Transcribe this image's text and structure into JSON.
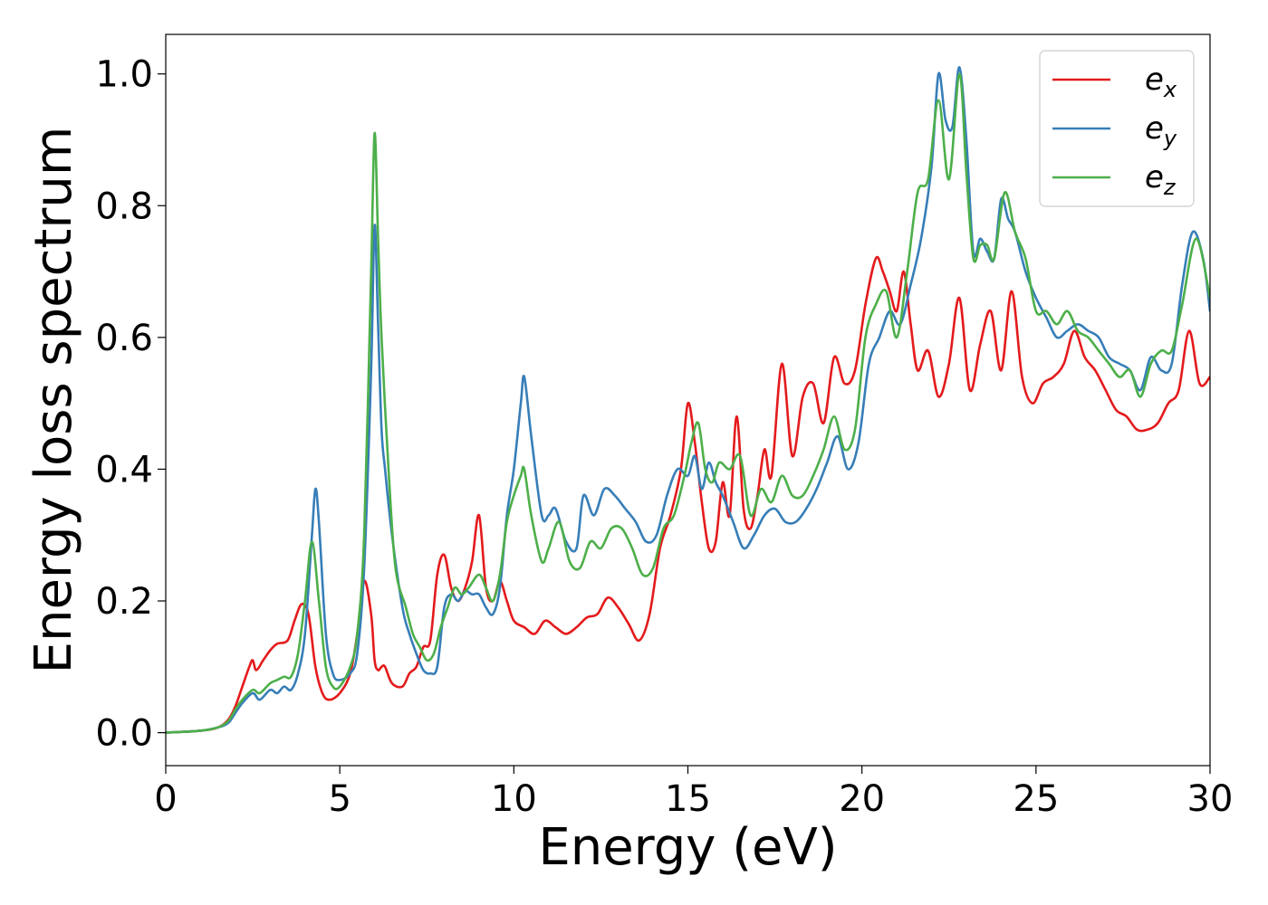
{
  "chart_data": {
    "type": "line",
    "title": "",
    "xlabel": "Energy (eV)",
    "ylabel": "Energy loss spectrum",
    "xlim": [
      0,
      30
    ],
    "ylim": [
      -0.05,
      1.06
    ],
    "xticks": [
      0,
      5,
      10,
      15,
      20,
      25,
      30
    ],
    "xtick_labels": [
      "0",
      "5",
      "10",
      "15",
      "20",
      "25",
      "30"
    ],
    "yticks": [
      0.0,
      0.2,
      0.4,
      0.6,
      0.8,
      1.0
    ],
    "ytick_labels": [
      "0.0",
      "0.2",
      "0.4",
      "0.6",
      "0.8",
      "1.0"
    ],
    "grid": false,
    "legend_position": "top-right",
    "series": [
      {
        "name": "e_x",
        "label_base": "e",
        "label_sub": "x",
        "color": "#e41a1c",
        "x": [
          0,
          1,
          1.5,
          1.8,
          2.0,
          2.2,
          2.4,
          2.5,
          2.6,
          2.8,
          3.0,
          3.2,
          3.5,
          3.7,
          3.9,
          4.1,
          4.3,
          4.5,
          4.7,
          5.0,
          5.3,
          5.5,
          5.7,
          5.9,
          6.0,
          6.1,
          6.2,
          6.3,
          6.5,
          6.8,
          7.0,
          7.2,
          7.4,
          7.6,
          7.8,
          8.0,
          8.2,
          8.4,
          8.6,
          8.8,
          9.0,
          9.2,
          9.4,
          9.6,
          9.8,
          10.0,
          10.3,
          10.6,
          10.9,
          11.2,
          11.5,
          11.8,
          12.1,
          12.4,
          12.7,
          13.0,
          13.3,
          13.6,
          13.9,
          14.2,
          14.5,
          14.8,
          15.0,
          15.2,
          15.4,
          15.6,
          15.8,
          16.0,
          16.2,
          16.4,
          16.6,
          16.8,
          17.0,
          17.2,
          17.4,
          17.7,
          18.0,
          18.3,
          18.6,
          18.9,
          19.2,
          19.5,
          19.8,
          20.1,
          20.4,
          20.6,
          20.8,
          21.0,
          21.2,
          21.4,
          21.6,
          21.9,
          22.2,
          22.5,
          22.8,
          23.1,
          23.4,
          23.7,
          24.0,
          24.3,
          24.6,
          24.9,
          25.2,
          25.5,
          25.8,
          26.1,
          26.4,
          26.7,
          27.0,
          27.3,
          27.6,
          27.9,
          28.2,
          28.5,
          28.8,
          29.1,
          29.4,
          29.7,
          30.0
        ],
        "y": [
          0,
          0.003,
          0.008,
          0.02,
          0.04,
          0.07,
          0.1,
          0.11,
          0.095,
          0.11,
          0.125,
          0.135,
          0.14,
          0.17,
          0.195,
          0.18,
          0.1,
          0.06,
          0.05,
          0.06,
          0.09,
          0.15,
          0.23,
          0.18,
          0.11,
          0.095,
          0.1,
          0.1,
          0.075,
          0.07,
          0.09,
          0.1,
          0.13,
          0.14,
          0.24,
          0.27,
          0.22,
          0.2,
          0.22,
          0.26,
          0.33,
          0.22,
          0.2,
          0.23,
          0.2,
          0.17,
          0.16,
          0.15,
          0.17,
          0.16,
          0.15,
          0.16,
          0.175,
          0.18,
          0.205,
          0.19,
          0.165,
          0.14,
          0.18,
          0.28,
          0.33,
          0.4,
          0.5,
          0.44,
          0.35,
          0.28,
          0.29,
          0.38,
          0.33,
          0.48,
          0.34,
          0.31,
          0.36,
          0.43,
          0.39,
          0.56,
          0.42,
          0.51,
          0.53,
          0.47,
          0.57,
          0.53,
          0.55,
          0.65,
          0.72,
          0.7,
          0.67,
          0.64,
          0.7,
          0.62,
          0.55,
          0.58,
          0.51,
          0.56,
          0.66,
          0.52,
          0.59,
          0.64,
          0.55,
          0.67,
          0.54,
          0.5,
          0.53,
          0.54,
          0.56,
          0.61,
          0.57,
          0.55,
          0.52,
          0.49,
          0.48,
          0.46,
          0.46,
          0.47,
          0.5,
          0.52,
          0.61,
          0.53,
          0.54
        ]
      },
      {
        "name": "e_y",
        "label_base": "e",
        "label_sub": "y",
        "color": "#377eb8",
        "x": [
          0,
          1,
          1.5,
          1.8,
          2.0,
          2.2,
          2.5,
          2.7,
          3.0,
          3.2,
          3.4,
          3.6,
          3.8,
          4.0,
          4.2,
          4.3,
          4.4,
          4.6,
          4.8,
          5.0,
          5.3,
          5.5,
          5.7,
          5.9,
          6.0,
          6.1,
          6.2,
          6.3,
          6.5,
          6.8,
          7.0,
          7.2,
          7.4,
          7.6,
          7.8,
          8.0,
          8.2,
          8.4,
          8.6,
          8.8,
          9.0,
          9.2,
          9.4,
          9.6,
          9.8,
          10.0,
          10.2,
          10.3,
          10.5,
          10.8,
          11.0,
          11.2,
          11.5,
          11.8,
          12.0,
          12.3,
          12.6,
          12.9,
          13.2,
          13.5,
          13.8,
          14.1,
          14.4,
          14.7,
          15.0,
          15.2,
          15.4,
          15.6,
          15.8,
          16.0,
          16.3,
          16.6,
          16.9,
          17.2,
          17.5,
          17.8,
          18.1,
          18.4,
          18.7,
          19.0,
          19.3,
          19.6,
          19.9,
          20.2,
          20.5,
          20.8,
          21.1,
          21.4,
          21.7,
          22.0,
          22.2,
          22.4,
          22.6,
          22.8,
          23.0,
          23.2,
          23.4,
          23.6,
          23.8,
          24.0,
          24.2,
          24.4,
          24.7,
          25.0,
          25.3,
          25.6,
          25.9,
          26.2,
          26.5,
          26.8,
          27.1,
          27.4,
          27.7,
          28.0,
          28.3,
          28.6,
          28.9,
          29.2,
          29.5,
          29.8,
          30.0
        ],
        "y": [
          0,
          0.003,
          0.008,
          0.015,
          0.03,
          0.045,
          0.06,
          0.05,
          0.065,
          0.06,
          0.07,
          0.065,
          0.09,
          0.15,
          0.3,
          0.37,
          0.32,
          0.15,
          0.09,
          0.08,
          0.09,
          0.12,
          0.25,
          0.55,
          0.77,
          0.62,
          0.46,
          0.4,
          0.3,
          0.19,
          0.15,
          0.12,
          0.095,
          0.09,
          0.1,
          0.19,
          0.21,
          0.2,
          0.215,
          0.21,
          0.21,
          0.19,
          0.18,
          0.22,
          0.33,
          0.4,
          0.5,
          0.54,
          0.45,
          0.33,
          0.33,
          0.34,
          0.29,
          0.28,
          0.36,
          0.33,
          0.37,
          0.36,
          0.34,
          0.32,
          0.29,
          0.3,
          0.36,
          0.4,
          0.39,
          0.42,
          0.37,
          0.41,
          0.38,
          0.36,
          0.32,
          0.28,
          0.3,
          0.33,
          0.34,
          0.32,
          0.32,
          0.34,
          0.37,
          0.41,
          0.45,
          0.4,
          0.44,
          0.56,
          0.6,
          0.64,
          0.62,
          0.68,
          0.75,
          0.86,
          1.0,
          0.93,
          0.92,
          1.01,
          0.9,
          0.73,
          0.75,
          0.73,
          0.72,
          0.81,
          0.78,
          0.76,
          0.7,
          0.66,
          0.63,
          0.6,
          0.61,
          0.62,
          0.61,
          0.6,
          0.57,
          0.56,
          0.55,
          0.52,
          0.57,
          0.55,
          0.56,
          0.68,
          0.76,
          0.72,
          0.64
        ]
      },
      {
        "name": "e_z",
        "label_base": "e",
        "label_sub": "z",
        "color": "#4daf4a",
        "x": [
          0,
          1,
          1.5,
          1.8,
          2.0,
          2.2,
          2.5,
          2.7,
          3.0,
          3.2,
          3.4,
          3.6,
          3.8,
          4.0,
          4.2,
          4.4,
          4.6,
          4.8,
          5.0,
          5.3,
          5.5,
          5.7,
          5.9,
          6.0,
          6.1,
          6.2,
          6.4,
          6.6,
          6.9,
          7.1,
          7.3,
          7.5,
          7.7,
          7.9,
          8.1,
          8.3,
          8.5,
          8.7,
          9.0,
          9.2,
          9.4,
          9.6,
          9.8,
          10.0,
          10.2,
          10.3,
          10.5,
          10.8,
          11.0,
          11.3,
          11.6,
          11.9,
          12.2,
          12.5,
          12.8,
          13.1,
          13.4,
          13.7,
          14.0,
          14.3,
          14.6,
          14.9,
          15.1,
          15.3,
          15.5,
          15.7,
          15.9,
          16.2,
          16.5,
          16.8,
          17.1,
          17.4,
          17.7,
          18.0,
          18.3,
          18.6,
          18.9,
          19.2,
          19.5,
          19.8,
          20.1,
          20.4,
          20.7,
          21.0,
          21.3,
          21.6,
          21.9,
          22.2,
          22.5,
          22.8,
          23.0,
          23.2,
          23.4,
          23.6,
          23.8,
          24.1,
          24.4,
          24.7,
          25.0,
          25.3,
          25.6,
          25.9,
          26.2,
          26.5,
          26.8,
          27.1,
          27.4,
          27.7,
          28.0,
          28.3,
          28.6,
          28.9,
          29.2,
          29.6,
          30.0
        ],
        "y": [
          0,
          0.003,
          0.008,
          0.018,
          0.035,
          0.05,
          0.065,
          0.06,
          0.075,
          0.08,
          0.085,
          0.085,
          0.12,
          0.2,
          0.29,
          0.2,
          0.1,
          0.07,
          0.07,
          0.1,
          0.15,
          0.3,
          0.7,
          0.91,
          0.75,
          0.6,
          0.4,
          0.25,
          0.19,
          0.15,
          0.13,
          0.11,
          0.12,
          0.16,
          0.19,
          0.22,
          0.21,
          0.22,
          0.24,
          0.22,
          0.2,
          0.24,
          0.32,
          0.36,
          0.39,
          0.4,
          0.33,
          0.26,
          0.28,
          0.32,
          0.26,
          0.25,
          0.29,
          0.28,
          0.31,
          0.31,
          0.28,
          0.24,
          0.25,
          0.31,
          0.33,
          0.39,
          0.44,
          0.47,
          0.4,
          0.38,
          0.41,
          0.4,
          0.42,
          0.33,
          0.37,
          0.35,
          0.39,
          0.36,
          0.36,
          0.39,
          0.43,
          0.48,
          0.43,
          0.46,
          0.6,
          0.65,
          0.67,
          0.6,
          0.7,
          0.82,
          0.84,
          0.96,
          0.84,
          1.0,
          0.85,
          0.72,
          0.74,
          0.74,
          0.72,
          0.82,
          0.76,
          0.72,
          0.64,
          0.64,
          0.62,
          0.64,
          0.61,
          0.6,
          0.58,
          0.56,
          0.54,
          0.55,
          0.51,
          0.56,
          0.58,
          0.58,
          0.65,
          0.75,
          0.66
        ]
      }
    ]
  }
}
